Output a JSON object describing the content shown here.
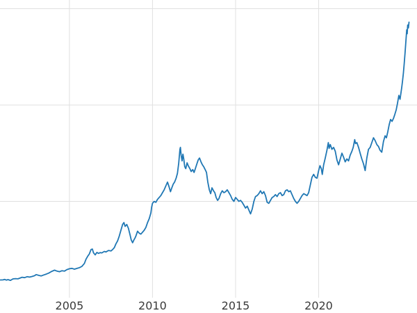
{
  "chart_data": {
    "type": "line",
    "title": "",
    "xlabel": "",
    "ylabel": "",
    "grid": true,
    "legend_visible": false,
    "xlim": [
      2000.82,
      2025.92
    ],
    "ylim": [
      0,
      3090
    ],
    "x_ticks": [
      {
        "value": 2005,
        "label": "2005"
      },
      {
        "value": 2010,
        "label": "2010"
      },
      {
        "value": 2015,
        "label": "2015"
      },
      {
        "value": 2020,
        "label": "2020"
      }
    ],
    "y_gridlines": [
      1000,
      2000,
      3000
    ],
    "colors": {
      "line": "#1f77b4",
      "grid": "#e0e0e0",
      "tick_label": "#3a3a3a",
      "background": "#ffffff"
    },
    "series_name": "",
    "x": [
      2000.85,
      2001.0,
      2001.1,
      2001.2,
      2001.3,
      2001.45,
      2001.6,
      2001.75,
      2001.9,
      2002.0,
      2002.15,
      2002.3,
      2002.45,
      2002.6,
      2002.75,
      2002.9,
      2003.0,
      2003.15,
      2003.3,
      2003.45,
      2003.6,
      2003.75,
      2003.9,
      2004.0,
      2004.1,
      2004.25,
      2004.4,
      2004.55,
      2004.7,
      2004.85,
      2005.0,
      2005.15,
      2005.3,
      2005.45,
      2005.6,
      2005.75,
      2005.9,
      2006.0,
      2006.1,
      2006.2,
      2006.3,
      2006.38,
      2006.45,
      2006.55,
      2006.65,
      2006.75,
      2006.85,
      2006.95,
      2007.0,
      2007.1,
      2007.2,
      2007.35,
      2007.5,
      2007.6,
      2007.7,
      2007.8,
      2007.9,
      2008.0,
      2008.1,
      2008.2,
      2008.28,
      2008.35,
      2008.45,
      2008.55,
      2008.65,
      2008.72,
      2008.8,
      2008.88,
      2008.95,
      2009.0,
      2009.1,
      2009.2,
      2009.3,
      2009.4,
      2009.5,
      2009.6,
      2009.7,
      2009.8,
      2009.9,
      2009.95,
      2010.0,
      2010.1,
      2010.2,
      2010.3,
      2010.4,
      2010.5,
      2010.6,
      2010.7,
      2010.8,
      2010.9,
      2011.0,
      2011.08,
      2011.16,
      2011.25,
      2011.33,
      2011.42,
      2011.5,
      2011.58,
      2011.65,
      2011.68,
      2011.72,
      2011.78,
      2011.83,
      2011.88,
      2011.94,
      2012.0,
      2012.08,
      2012.15,
      2012.25,
      2012.33,
      2012.42,
      2012.5,
      2012.58,
      2012.67,
      2012.75,
      2012.83,
      2012.92,
      2013.0,
      2013.08,
      2013.17,
      2013.25,
      2013.33,
      2013.42,
      2013.5,
      2013.58,
      2013.67,
      2013.75,
      2013.83,
      2013.92,
      2014.0,
      2014.1,
      2014.2,
      2014.3,
      2014.4,
      2014.5,
      2014.6,
      2014.7,
      2014.8,
      2014.9,
      2015.0,
      2015.1,
      2015.2,
      2015.3,
      2015.4,
      2015.5,
      2015.6,
      2015.7,
      2015.8,
      2015.9,
      2016.0,
      2016.1,
      2016.2,
      2016.3,
      2016.4,
      2016.5,
      2016.6,
      2016.7,
      2016.8,
      2016.9,
      2017.0,
      2017.1,
      2017.2,
      2017.3,
      2017.4,
      2017.5,
      2017.6,
      2017.7,
      2017.8,
      2017.9,
      2018.0,
      2018.1,
      2018.2,
      2018.3,
      2018.4,
      2018.5,
      2018.6,
      2018.7,
      2018.8,
      2018.9,
      2019.0,
      2019.1,
      2019.2,
      2019.3,
      2019.4,
      2019.5,
      2019.6,
      2019.7,
      2019.8,
      2019.9,
      2020.0,
      2020.08,
      2020.16,
      2020.22,
      2020.3,
      2020.4,
      2020.5,
      2020.58,
      2020.63,
      2020.7,
      2020.8,
      2020.9,
      2021.0,
      2021.1,
      2021.2,
      2021.3,
      2021.4,
      2021.5,
      2021.6,
      2021.7,
      2021.8,
      2021.9,
      2022.0,
      2022.08,
      2022.17,
      2022.22,
      2022.3,
      2022.4,
      2022.5,
      2022.6,
      2022.7,
      2022.8,
      2022.9,
      2023.0,
      2023.1,
      2023.2,
      2023.3,
      2023.4,
      2023.5,
      2023.6,
      2023.7,
      2023.8,
      2023.9,
      2024.0,
      2024.08,
      2024.16,
      2024.25,
      2024.33,
      2024.42,
      2024.5,
      2024.58,
      2024.67,
      2024.75,
      2024.83,
      2024.9,
      2024.95,
      2025.0,
      2025.05,
      2025.1,
      2025.15,
      2025.2,
      2025.25,
      2025.3,
      2025.33,
      2025.36,
      2025.4,
      2025.44
    ],
    "values": [
      184,
      185,
      190,
      183,
      188,
      180,
      195,
      198,
      196,
      202,
      212,
      208,
      218,
      214,
      220,
      228,
      240,
      232,
      226,
      236,
      245,
      255,
      270,
      278,
      286,
      276,
      270,
      280,
      276,
      292,
      300,
      305,
      296,
      304,
      312,
      325,
      355,
      400,
      430,
      455,
      500,
      505,
      465,
      445,
      470,
      460,
      468,
      465,
      470,
      480,
      475,
      490,
      485,
      500,
      520,
      560,
      590,
      640,
      700,
      760,
      780,
      740,
      760,
      720,
      650,
      600,
      570,
      600,
      620,
      640,
      690,
      670,
      660,
      680,
      700,
      730,
      780,
      820,
      880,
      940,
      980,
      1000,
      990,
      1020,
      1040,
      1060,
      1090,
      1120,
      1160,
      1200,
      1150,
      1100,
      1140,
      1180,
      1200,
      1240,
      1290,
      1400,
      1540,
      1560,
      1480,
      1420,
      1490,
      1440,
      1360,
      1340,
      1400,
      1370,
      1340,
      1310,
      1330,
      1300,
      1340,
      1390,
      1430,
      1450,
      1410,
      1380,
      1360,
      1330,
      1300,
      1200,
      1120,
      1080,
      1140,
      1110,
      1090,
      1040,
      1010,
      1030,
      1080,
      1110,
      1090,
      1100,
      1120,
      1090,
      1060,
      1020,
      1000,
      1040,
      1020,
      1000,
      1010,
      990,
      960,
      930,
      950,
      910,
      870,
      920,
      1000,
      1050,
      1060,
      1080,
      1110,
      1080,
      1100,
      1060,
      990,
      980,
      1010,
      1040,
      1050,
      1070,
      1050,
      1080,
      1090,
      1060,
      1070,
      1110,
      1120,
      1100,
      1110,
      1070,
      1030,
      1000,
      980,
      1000,
      1030,
      1060,
      1080,
      1070,
      1060,
      1090,
      1170,
      1250,
      1280,
      1250,
      1240,
      1320,
      1370,
      1340,
      1280,
      1380,
      1450,
      1530,
      1610,
      1550,
      1590,
      1540,
      1560,
      1520,
      1430,
      1380,
      1440,
      1500,
      1460,
      1410,
      1440,
      1420,
      1480,
      1520,
      1560,
      1640,
      1600,
      1610,
      1560,
      1500,
      1440,
      1390,
      1320,
      1450,
      1540,
      1560,
      1610,
      1660,
      1630,
      1590,
      1570,
      1530,
      1510,
      1620,
      1680,
      1660,
      1720,
      1800,
      1850,
      1830,
      1860,
      1900,
      1950,
      2020,
      2100,
      2060,
      2120,
      2180,
      2250,
      2330,
      2430,
      2540,
      2660,
      2780,
      2740,
      2830,
      2800,
      2860
    ]
  }
}
